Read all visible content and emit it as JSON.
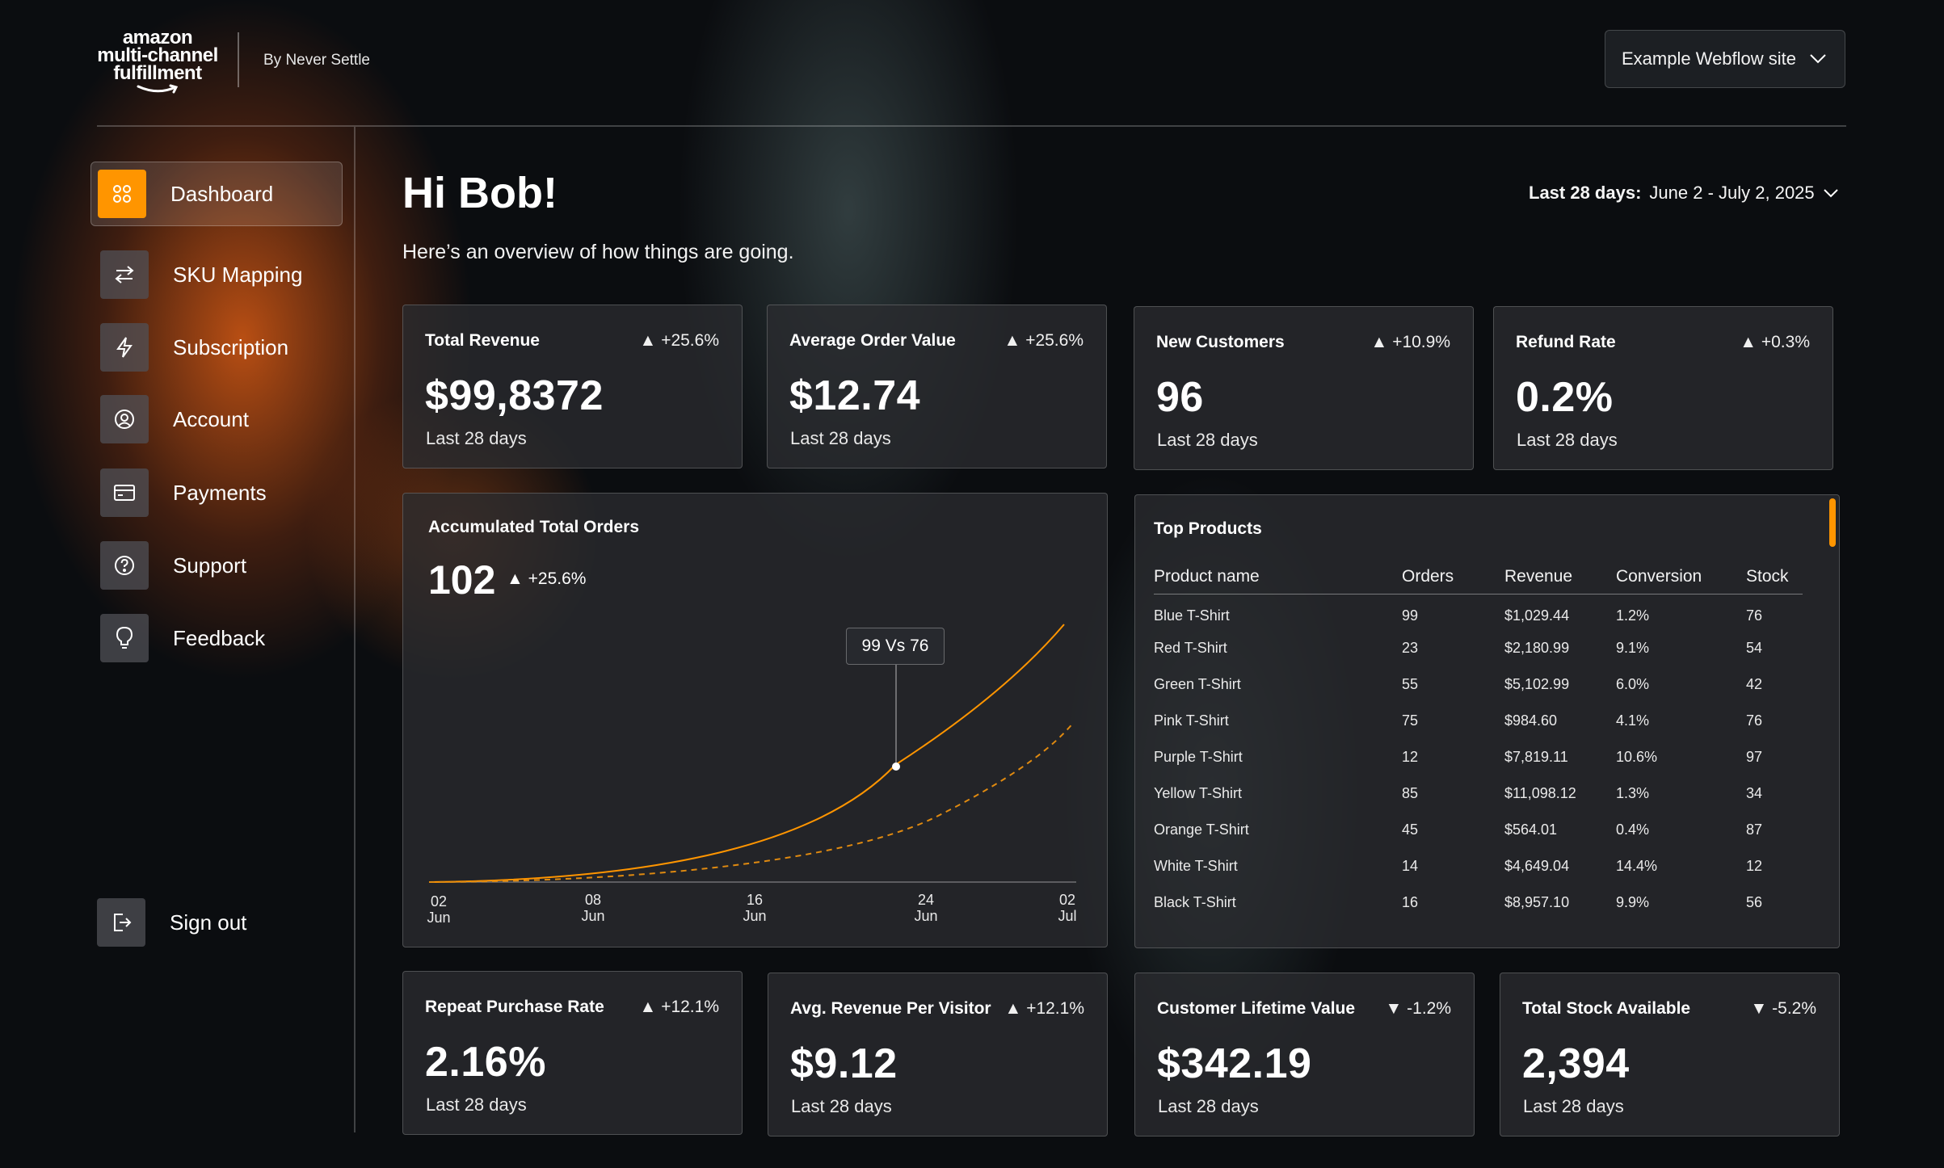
{
  "header": {
    "logo": {
      "line1": "amazon",
      "line2": "multi-channel",
      "line3": "fulfillment"
    },
    "byline": "By Never Settle",
    "site_select": "Example Webflow site"
  },
  "sidebar": {
    "items": [
      {
        "label": "Dashboard",
        "icon": "grid-icon"
      },
      {
        "label": "SKU Mapping",
        "icon": "swap-arrows-icon"
      },
      {
        "label": "Subscription",
        "icon": "lightning-icon"
      },
      {
        "label": "Account",
        "icon": "user-circle-icon"
      },
      {
        "label": "Payments",
        "icon": "credit-card-icon"
      },
      {
        "label": "Support",
        "icon": "question-circle-icon"
      },
      {
        "label": "Feedback",
        "icon": "lightbulb-icon"
      }
    ],
    "signout": "Sign out"
  },
  "main": {
    "greeting": "Hi Bob!",
    "subtitle": "Here’s an overview of how things are going.",
    "range_label": "Last 28 days:",
    "range_value": "June 2 - July 2, 2025"
  },
  "kpis_top": [
    {
      "title": "Total Revenue",
      "delta": "+25.6%",
      "value": "$99,8372",
      "period": "Last 28 days"
    },
    {
      "title": "Average Order Value",
      "delta": "+25.6%",
      "value": "$12.74",
      "period": "Last 28 days"
    },
    {
      "title": "New Customers",
      "delta": "+10.9%",
      "value": "96",
      "period": "Last 28 days"
    },
    {
      "title": "Refund Rate",
      "delta": "+0.3%",
      "value": "0.2%",
      "period": "Last 28 days"
    }
  ],
  "kpis_bottom": [
    {
      "title": "Repeat Purchase Rate",
      "delta": "+12.1%",
      "value": "2.16%",
      "period": "Last 28 days"
    },
    {
      "title": "Avg. Revenue Per Visitor",
      "delta": "+12.1%",
      "value": "$9.12",
      "period": "Last 28 days"
    },
    {
      "title": "Customer Lifetime Value",
      "delta": "-1.2%",
      "value": "$342.19",
      "period": "Last 28 days"
    },
    {
      "title": "Total Stock Available",
      "delta": "-5.2%",
      "value": "2,394",
      "period": "Last 28 days"
    }
  ],
  "orders_chart": {
    "title": "Accumulated Total Orders",
    "total": "102",
    "delta": "+25.6%",
    "tooltip": "99 Vs 76",
    "ticks": [
      {
        "day": "02",
        "month": "Jun"
      },
      {
        "day": "08",
        "month": "Jun"
      },
      {
        "day": "16",
        "month": "Jun"
      },
      {
        "day": "24",
        "month": "Jun"
      },
      {
        "day": "02",
        "month": "Jul"
      }
    ],
    "colors": {
      "current": "#ff9500",
      "previous": "#e08a10"
    }
  },
  "top_products": {
    "title": "Top Products",
    "columns": [
      "Product name",
      "Orders",
      "Revenue",
      "Conversion",
      "Stock"
    ],
    "rows": [
      [
        "Blue T-Shirt",
        "99",
        "$1,029.44",
        "1.2%",
        "76"
      ],
      [
        "Red T-Shirt",
        "23",
        "$2,180.99",
        "9.1%",
        "54"
      ],
      [
        "Green T-Shirt",
        "55",
        "$5,102.99",
        "6.0%",
        "42"
      ],
      [
        "Pink T-Shirt",
        "75",
        "$984.60",
        "4.1%",
        "76"
      ],
      [
        "Purple T-Shirt",
        "12",
        "$7,819.11",
        "10.6%",
        "97"
      ],
      [
        "Yellow T-Shirt",
        "85",
        "$11,098.12",
        "1.3%",
        "34"
      ],
      [
        "Orange T-Shirt",
        "45",
        "$564.01",
        "0.4%",
        "87"
      ],
      [
        "White T-Shirt",
        "14",
        "$4,649.04",
        "14.4%",
        "12"
      ],
      [
        "Black T-Shirt",
        "16",
        "$8,957.10",
        "9.9%",
        "56"
      ]
    ]
  },
  "accent_color": "#ff9500"
}
